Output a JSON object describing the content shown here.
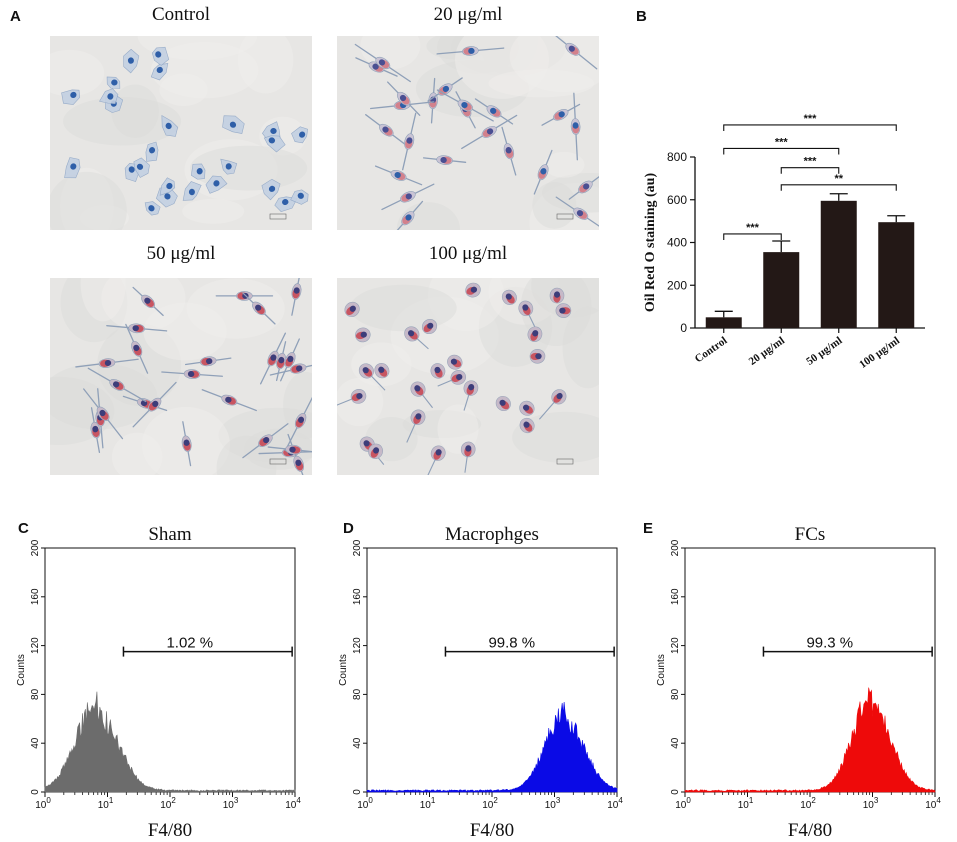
{
  "panels": {
    "a": {
      "label": "A",
      "images": [
        {
          "title": "Control",
          "stain": "blue",
          "shape": "spread",
          "count": 26
        },
        {
          "title": "20 μg/ml",
          "stain": "mix",
          "shape": "spindle",
          "count": 24
        },
        {
          "title": "50 μg/ml",
          "stain": "red",
          "shape": "spindle",
          "count": 26
        },
        {
          "title": "100 μg/ml",
          "stain": "red",
          "shape": "round",
          "count": 28
        }
      ]
    },
    "b": {
      "label": "B"
    },
    "c": {
      "label": "C"
    },
    "d": {
      "label": "D"
    },
    "e": {
      "label": "E"
    }
  },
  "chart_data": [
    {
      "type": "bar",
      "title": "",
      "categories": [
        "Control",
        "20 μg/ml",
        "50  μg/ml",
        "100  μg/ml"
      ],
      "values": [
        50,
        355,
        595,
        495
      ],
      "errors": [
        28,
        52,
        33,
        30
      ],
      "ylabel": "Oil Red O staining (au)",
      "xlabel": "",
      "ylim": [
        0,
        800
      ],
      "yticks": [
        0,
        200,
        400,
        600,
        800
      ],
      "bar_color": "#231816",
      "significance": [
        {
          "from": 0,
          "to": 1,
          "label": "***"
        },
        {
          "from": 1,
          "to": 2,
          "label": "***"
        },
        {
          "from": 1,
          "to": 3,
          "label": "**"
        },
        {
          "from": 0,
          "to": 2,
          "label": "***"
        },
        {
          "from": 0,
          "to": 3,
          "label": "***"
        }
      ]
    },
    {
      "type": "histogram",
      "title": "Sham",
      "xlabel": "F4/80",
      "ylabel": "Counts",
      "xscale": "log",
      "xlim": [
        1,
        10000
      ],
      "xticks": [
        "10",
        "10",
        "10",
        "10",
        "10"
      ],
      "xtick_exponents": [
        "0",
        "1",
        "2",
        "3",
        "4"
      ],
      "ylim": [
        0,
        200
      ],
      "yticks": [
        0,
        40,
        80,
        120,
        160,
        200
      ],
      "peak_x": 7,
      "peak_y": 78,
      "spread": 0.33,
      "gate": {
        "from": 18,
        "to": 9000,
        "label": "1.02 %"
      },
      "color": "#6c6c6c"
    },
    {
      "type": "histogram",
      "title": "Macrophges",
      "xlabel": "F4/80",
      "ylabel": "Counts",
      "xscale": "log",
      "xlim": [
        1,
        10000
      ],
      "xticks": [
        "10",
        "10",
        "10",
        "10",
        "10"
      ],
      "xtick_exponents": [
        "0",
        "1",
        "2",
        "3",
        "4"
      ],
      "ylim": [
        0,
        200
      ],
      "yticks": [
        0,
        40,
        80,
        120,
        160,
        200
      ],
      "peak_x": 1500,
      "peak_y": 72,
      "spread": 0.3,
      "gate": {
        "from": 18,
        "to": 9000,
        "label": "99.8 %"
      },
      "color": "#0a0ae6"
    },
    {
      "type": "histogram",
      "title": "FCs",
      "xlabel": "F4/80",
      "ylabel": "Counts",
      "xscale": "log",
      "xlim": [
        1,
        10000
      ],
      "xticks": [
        "10",
        "10",
        "10",
        "10",
        "10"
      ],
      "xtick_exponents": [
        "0",
        "1",
        "2",
        "3",
        "4"
      ],
      "ylim": [
        0,
        200
      ],
      "yticks": [
        0,
        40,
        80,
        120,
        160,
        200
      ],
      "peak_x": 1000,
      "peak_y": 85,
      "spread": 0.3,
      "gate": {
        "from": 18,
        "to": 9000,
        "label": "99.3 %"
      },
      "color": "#ee0a0a"
    }
  ]
}
